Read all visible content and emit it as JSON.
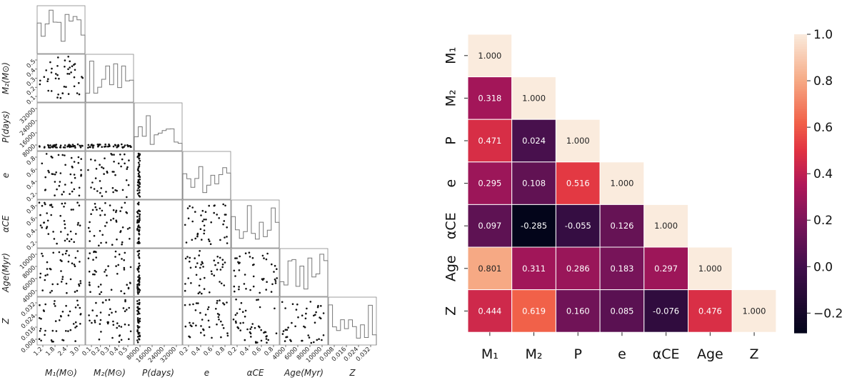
{
  "chart_data": [
    {
      "type": "scatter",
      "subtype": "corner-plot",
      "variables": [
        {
          "key": "M1",
          "label": "M₁(M⊙)",
          "ticks": [
            "1.2",
            "1.8",
            "2.4",
            "3.0"
          ],
          "range": [
            1.0,
            3.4
          ]
        },
        {
          "key": "M2",
          "label": "M₂(M⊙)",
          "ticks": [
            "0.1",
            "0.2",
            "0.3",
            "0.4",
            "0.5"
          ],
          "range": [
            0.05,
            0.56
          ]
        },
        {
          "key": "P",
          "label": "P(days)",
          "ticks": [
            "8000",
            "16000",
            "24000",
            "32000"
          ],
          "range": [
            0,
            34000
          ]
        },
        {
          "key": "e",
          "label": "e",
          "ticks": [
            "0.2",
            "0.4",
            "0.6",
            "0.8"
          ],
          "range": [
            0.05,
            0.95
          ]
        },
        {
          "key": "aCE",
          "label": "αCE",
          "ticks": [
            "0.2",
            "0.4",
            "0.6",
            "0.8"
          ],
          "range": [
            0.05,
            0.95
          ]
        },
        {
          "key": "Age",
          "label": "Age(Myr)",
          "ticks": [
            "4000",
            "6000",
            "8000",
            "10000"
          ],
          "range": [
            3000,
            11600
          ]
        },
        {
          "key": "Z",
          "label": "Z",
          "ticks": [
            "0.008",
            "0.016",
            "0.024",
            "0.032"
          ],
          "range": [
            0.004,
            0.035
          ]
        }
      ]
    },
    {
      "type": "heatmap",
      "row_labels": [
        "M₁",
        "M₂",
        "P",
        "e",
        "αCE",
        "Age",
        "Z"
      ],
      "col_labels": [
        "M₁",
        "M₂",
        "P",
        "e",
        "αCE",
        "Age",
        "Z"
      ],
      "values": [
        [
          1.0
        ],
        [
          0.318,
          1.0
        ],
        [
          0.471,
          0.024,
          1.0
        ],
        [
          0.295,
          0.108,
          0.516,
          1.0
        ],
        [
          0.097,
          -0.285,
          -0.055,
          0.126,
          1.0
        ],
        [
          0.801,
          0.311,
          0.286,
          0.183,
          0.297,
          1.0
        ],
        [
          0.444,
          0.619,
          0.16,
          0.085,
          -0.076,
          0.476,
          1.0
        ]
      ],
      "colorbar": {
        "range": [
          -0.285,
          1.0
        ],
        "ticks": [
          "1.0",
          "0.8",
          "0.6",
          "0.4",
          "0.2",
          "0.0",
          "−0.2"
        ],
        "tick_values": [
          1.0,
          0.8,
          0.6,
          0.4,
          0.2,
          0.0,
          -0.2
        ],
        "colormap": "rocket"
      }
    }
  ]
}
